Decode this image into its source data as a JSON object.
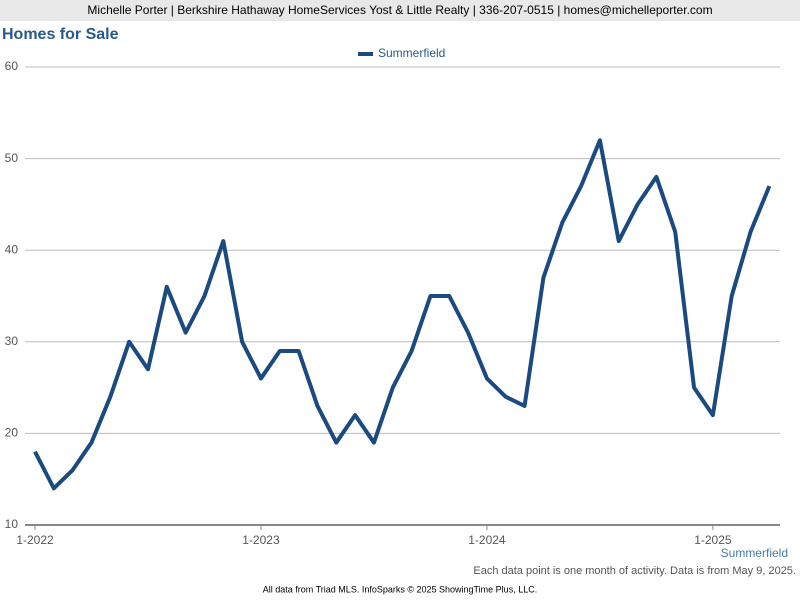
{
  "header": "Michelle Porter | Berkshire Hathaway HomeServices Yost & Little Realty | 336-207-0515 | homes@michelleporter.com",
  "chart_data": {
    "type": "line",
    "title": "Homes for Sale",
    "categories": [
      "1-2022",
      null,
      null,
      null,
      null,
      null,
      null,
      null,
      null,
      null,
      null,
      null,
      "1-2023",
      null,
      null,
      null,
      null,
      null,
      null,
      null,
      null,
      null,
      null,
      null,
      "1-2024",
      null,
      null,
      null,
      null,
      null,
      null,
      null,
      null,
      null,
      null,
      null,
      "1-2025",
      null,
      null,
      null
    ],
    "series": [
      {
        "name": "Summerfield",
        "color": "#1b4a80",
        "values": [
          18,
          14,
          16,
          19,
          24,
          30,
          27,
          36,
          31,
          35,
          41,
          30,
          26,
          29,
          29,
          23,
          19,
          22,
          19,
          25,
          29,
          35,
          35,
          31,
          26,
          24,
          23,
          37,
          43,
          47,
          52,
          41,
          45,
          48,
          42,
          25,
          22,
          35,
          42,
          47
        ]
      }
    ],
    "ylim": [
      10,
      60
    ],
    "yticks": [
      10,
      20,
      30,
      40,
      50,
      60
    ],
    "grid": true,
    "corner_label": "Summerfield",
    "note": "Each data point is one month of activity. Data is from May 9, 2025."
  },
  "footer": "All data from Triad MLS. InfoSparks © 2025 ShowingTime Plus, LLC."
}
